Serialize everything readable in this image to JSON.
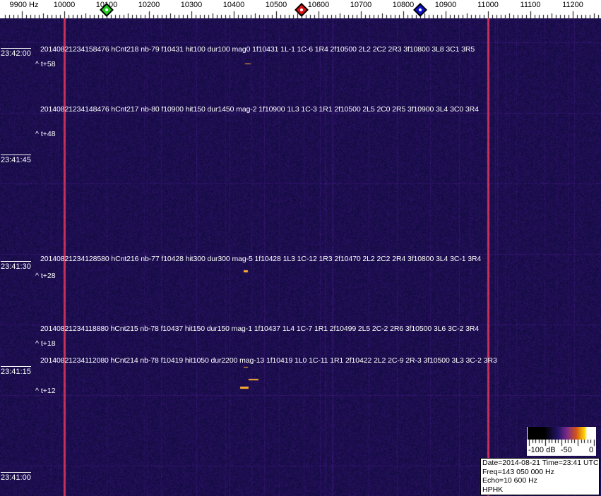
{
  "axis": {
    "unit_label": "9900 Hz",
    "freq_labels": [
      "10000",
      "10100",
      "10200",
      "10300",
      "10400",
      "10500",
      "10600",
      "10700",
      "10800",
      "10900",
      "11000",
      "11100",
      "11200"
    ],
    "markers": [
      {
        "name": "green-marker",
        "freq": 10100,
        "color": "#22cc22"
      },
      {
        "name": "red-marker",
        "freq": 10560,
        "color": "#dd1111"
      },
      {
        "name": "blue-marker",
        "freq": 10840,
        "color": "#1111cc"
      }
    ]
  },
  "time_labels": [
    "23:42:00",
    "23:41:45",
    "23:41:30",
    "23:41:15",
    "23:41:00"
  ],
  "events": [
    {
      "text": "20140821234158476 hCnt218 nb-79 f10431 hit100 dur100 mag0 1f10431 1L-1 1C-6 1R4 2f10500 2L2 2C2 2R3 3f10800 3L8 3C1 3R5",
      "tplus": "^ t+58"
    },
    {
      "text": "20140821234148476 hCnt217 nb-80 f10900 hit150 dur1450 mag-2 1f10900 1L3 1C-3 1R1 2f10500 2L5 2C0 2R5 3f10900 3L4 3C0 3R4",
      "tplus": "^ t+48"
    },
    {
      "text": "20140821234128580 hCnt216 nb-77 f10428 hit300 dur300 mag-5 1f10428 1L3 1C-12 1R3 2f10470 2L2 2C2 2R4 3f10800 3L4 3C-1 3R4",
      "tplus": "^ t+28"
    },
    {
      "text": "20140821234118880 hCnt215 nb-78 f10437 hit150 dur150 mag-1 1f10437 1L4 1C-7 1R1 2f10499 2L5 2C-2 2R6 3f10500 3L6 3C-2 3R4",
      "tplus": "^ t+18"
    },
    {
      "text": "20140821234112080 hCnt214 nb-78 f10419 hit1050 dur2200 mag-13 1f10419 1L0 1C-11 1R1 2f10422 2L2 2C-9 2R-3 3f10500 3L3 3C-2 3R3",
      "tplus": "^ t+12"
    }
  ],
  "colorbar": {
    "labels": [
      "-100 dB",
      "-50",
      "0"
    ]
  },
  "info": {
    "line1": "Date=2014-08-21 Time=23:41 UTC",
    "line2": "Freq=143 050 000 Hz",
    "line3": "Echo=10 600 Hz",
    "line4": "HPHK"
  },
  "colors": {
    "background": "#1a1466",
    "carrier": "#d0406a",
    "echo": "#ffb030"
  }
}
